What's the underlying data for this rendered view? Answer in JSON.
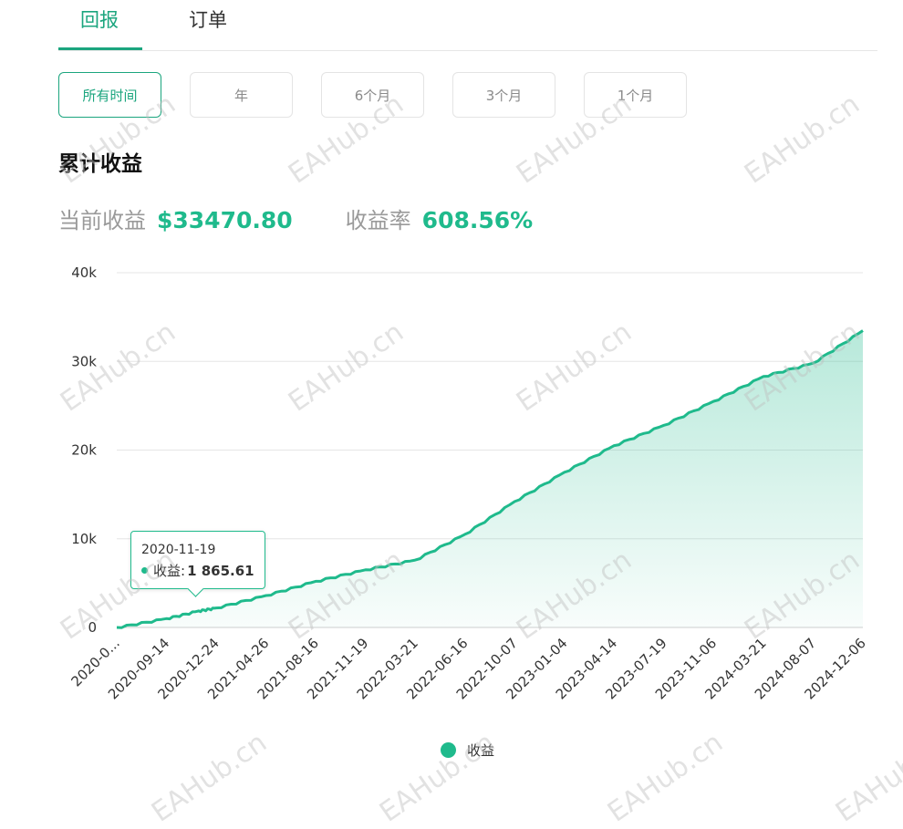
{
  "tabs": [
    {
      "label": "回报",
      "active": true
    },
    {
      "label": "订单",
      "active": false
    }
  ],
  "range_buttons": [
    {
      "label": "所有时间",
      "active": true
    },
    {
      "label": "年",
      "active": false
    },
    {
      "label": "6个月",
      "active": false
    },
    {
      "label": "3个月",
      "active": false
    },
    {
      "label": "1个月",
      "active": false
    }
  ],
  "section_title": "累计收益",
  "stats": {
    "current_label": "当前收益",
    "current_value": "$33470.80",
    "rate_label": "收益率",
    "rate_value": "608.56%"
  },
  "tooltip": {
    "date": "2020-11-19",
    "label": "收益:",
    "value": "1 865.61"
  },
  "legend": {
    "label": "收益"
  },
  "watermark": "EAHub.cn",
  "colors": {
    "accent": "#1fba8c",
    "tab_accent": "#1ba57e",
    "grid": "#e6e6e6"
  },
  "chart_data": {
    "type": "area",
    "series": [
      {
        "name": "收益"
      }
    ],
    "x_tick_labels": [
      "2020-0...",
      "2020-09-14",
      "2020-12-24",
      "2021-04-26",
      "2021-08-16",
      "2021-11-19",
      "2022-03-21",
      "2022-06-16",
      "2022-10-07",
      "2023-01-04",
      "2023-04-14",
      "2023-07-19",
      "2023-11-06",
      "2024-03-21",
      "2024-08-07",
      "2024-12-06"
    ],
    "y_tick_labels": [
      "0",
      "10k",
      "20k",
      "30k",
      "40k"
    ],
    "ylim": [
      0,
      40000
    ],
    "grid": true,
    "legend_position": "bottom-center",
    "points": [
      {
        "x": "2020-0...",
        "y": 0
      },
      {
        "x": "2020-09-14",
        "y": 1000
      },
      {
        "x": "2020-11-19",
        "y": 1865.61
      },
      {
        "x": "2020-12-24",
        "y": 2200
      },
      {
        "x": "2021-04-26",
        "y": 3600
      },
      {
        "x": "2021-08-16",
        "y": 5200
      },
      {
        "x": "2021-11-19",
        "y": 6500
      },
      {
        "x": "2022-03-21",
        "y": 7600
      },
      {
        "x": "2022-06-16",
        "y": 10500
      },
      {
        "x": "2022-10-07",
        "y": 14200
      },
      {
        "x": "2023-01-04",
        "y": 17500
      },
      {
        "x": "2023-04-14",
        "y": 20500
      },
      {
        "x": "2023-07-19",
        "y": 22800
      },
      {
        "x": "2023-11-06",
        "y": 25500
      },
      {
        "x": "2024-03-21",
        "y": 28300
      },
      {
        "x": "2024-08-07",
        "y": 29800
      },
      {
        "x": "2024-12-06",
        "y": 33470.8
      }
    ]
  }
}
